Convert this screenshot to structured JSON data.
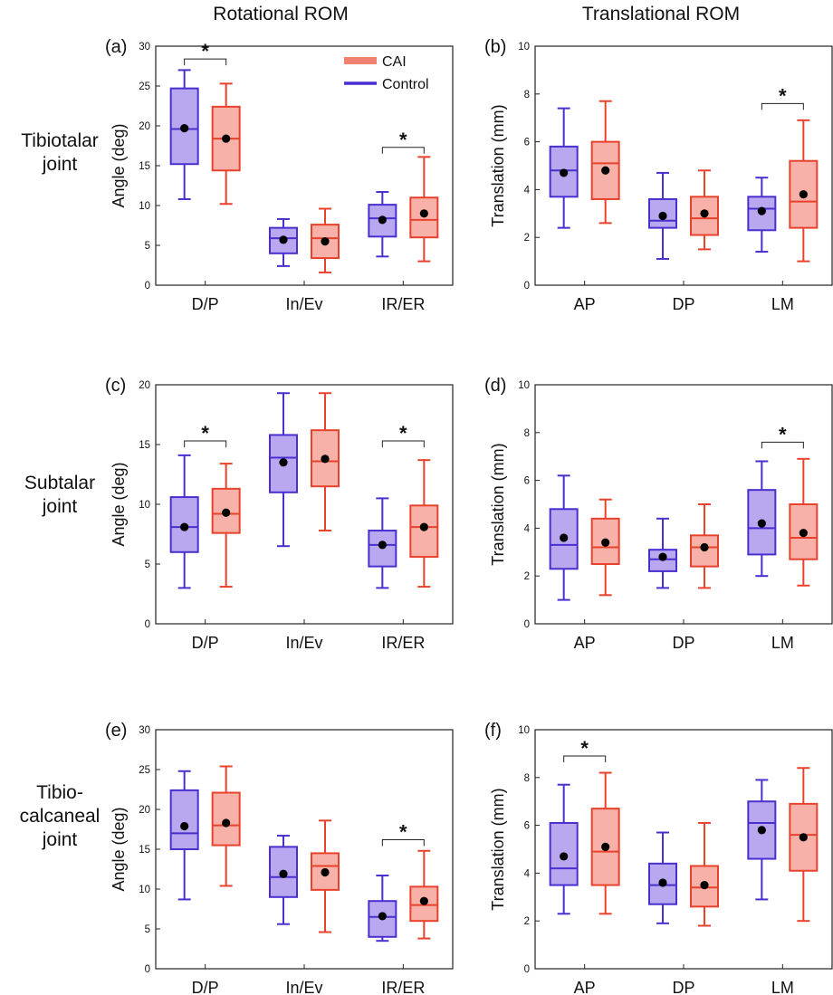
{
  "column_titles": [
    "Rotational ROM",
    "Translational ROM"
  ],
  "row_titles": [
    [
      "Tibiotalar",
      "joint"
    ],
    [
      "Subtalar",
      "joint"
    ],
    [
      "Tibio-",
      "calcaneal",
      "joint"
    ]
  ],
  "legend": [
    {
      "label": "CAI",
      "color": "#f08070"
    },
    {
      "label": "Control",
      "color": "#4a2fd0"
    }
  ],
  "colors": {
    "control_line": "#4a2fd0",
    "control_fill": "#b9a8ef",
    "cai_line": "#e8422c",
    "cai_fill": "#f7b1a8"
  },
  "chart_data": [
    {
      "type": "box",
      "label": "(a)",
      "ylabel": "Angle (deg)",
      "ylim": [
        0,
        30
      ],
      "yticks": [
        0,
        5,
        10,
        15,
        20,
        25,
        30
      ],
      "categories": [
        "D/P",
        "In/Ev",
        "IR/ER"
      ],
      "series": [
        {
          "name": "Control",
          "boxes": [
            {
              "min": 10.8,
              "q1": 15.2,
              "median": 19.6,
              "q3": 24.7,
              "max": 27.0,
              "mean": 19.7
            },
            {
              "min": 2.4,
              "q1": 4.0,
              "median": 5.9,
              "q3": 7.2,
              "max": 8.3,
              "mean": 5.7
            },
            {
              "min": 3.6,
              "q1": 6.1,
              "median": 8.4,
              "q3": 10.1,
              "max": 11.7,
              "mean": 8.2
            }
          ]
        },
        {
          "name": "CAI",
          "boxes": [
            {
              "min": 10.2,
              "q1": 14.4,
              "median": 18.4,
              "q3": 22.4,
              "max": 25.3,
              "mean": 18.4
            },
            {
              "min": 1.6,
              "q1": 3.4,
              "median": 5.9,
              "q3": 7.6,
              "max": 9.6,
              "mean": 5.5
            },
            {
              "min": 3.0,
              "q1": 6.0,
              "median": 8.2,
              "q3": 11.0,
              "max": 16.1,
              "mean": 9.0
            }
          ]
        }
      ],
      "significance": [
        {
          "category": 0,
          "y": 28.4,
          "label": "*"
        },
        {
          "category": 2,
          "y": 17.3,
          "label": "*"
        }
      ],
      "legend": true
    },
    {
      "type": "box",
      "label": "(b)",
      "ylabel": "Translation (mm)",
      "ylim": [
        0,
        10
      ],
      "yticks": [
        0,
        2,
        4,
        6,
        8,
        10
      ],
      "categories": [
        "AP",
        "DP",
        "LM"
      ],
      "series": [
        {
          "name": "Control",
          "boxes": [
            {
              "min": 2.4,
              "q1": 3.7,
              "median": 4.8,
              "q3": 5.8,
              "max": 7.4,
              "mean": 4.7
            },
            {
              "min": 1.1,
              "q1": 2.4,
              "median": 2.7,
              "q3": 3.6,
              "max": 4.7,
              "mean": 2.9
            },
            {
              "min": 1.4,
              "q1": 2.3,
              "median": 3.2,
              "q3": 3.7,
              "max": 4.5,
              "mean": 3.1
            }
          ]
        },
        {
          "name": "CAI",
          "boxes": [
            {
              "min": 2.6,
              "q1": 3.6,
              "median": 5.1,
              "q3": 6.0,
              "max": 7.7,
              "mean": 4.8
            },
            {
              "min": 1.5,
              "q1": 2.1,
              "median": 2.8,
              "q3": 3.7,
              "max": 4.8,
              "mean": 3.0
            },
            {
              "min": 1.0,
              "q1": 2.4,
              "median": 3.5,
              "q3": 5.2,
              "max": 6.9,
              "mean": 3.8
            }
          ]
        }
      ],
      "significance": [
        {
          "category": 2,
          "y": 7.6,
          "label": "*"
        }
      ],
      "legend": false
    },
    {
      "type": "box",
      "label": "(c)",
      "ylabel": "Angle (deg)",
      "ylim": [
        0,
        20
      ],
      "yticks": [
        0,
        5,
        10,
        15,
        20
      ],
      "categories": [
        "D/P",
        "In/Ev",
        "IR/ER"
      ],
      "series": [
        {
          "name": "Control",
          "boxes": [
            {
              "min": 3.0,
              "q1": 6.0,
              "median": 8.1,
              "q3": 10.6,
              "max": 14.1,
              "mean": 8.1
            },
            {
              "min": 6.5,
              "q1": 11.0,
              "median": 13.9,
              "q3": 15.8,
              "max": 19.3,
              "mean": 13.5
            },
            {
              "min": 3.0,
              "q1": 4.8,
              "median": 6.6,
              "q3": 7.8,
              "max": 10.5,
              "mean": 6.6
            }
          ]
        },
        {
          "name": "CAI",
          "boxes": [
            {
              "min": 3.1,
              "q1": 7.6,
              "median": 9.2,
              "q3": 11.3,
              "max": 13.4,
              "mean": 9.3
            },
            {
              "min": 7.8,
              "q1": 11.5,
              "median": 13.6,
              "q3": 16.2,
              "max": 19.3,
              "mean": 13.8
            },
            {
              "min": 3.1,
              "q1": 5.6,
              "median": 8.1,
              "q3": 9.9,
              "max": 13.7,
              "mean": 8.1
            }
          ]
        }
      ],
      "significance": [
        {
          "category": 0,
          "y": 15.3,
          "label": "*"
        },
        {
          "category": 2,
          "y": 15.3,
          "label": "*"
        }
      ],
      "legend": false
    },
    {
      "type": "box",
      "label": "(d)",
      "ylabel": "Translation (mm)",
      "ylim": [
        0,
        10
      ],
      "yticks": [
        0,
        2,
        4,
        6,
        8,
        10
      ],
      "categories": [
        "AP",
        "DP",
        "LM"
      ],
      "series": [
        {
          "name": "Control",
          "boxes": [
            {
              "min": 1.0,
              "q1": 2.3,
              "median": 3.3,
              "q3": 4.8,
              "max": 6.2,
              "mean": 3.6
            },
            {
              "min": 1.5,
              "q1": 2.2,
              "median": 2.7,
              "q3": 3.1,
              "max": 4.4,
              "mean": 2.8
            },
            {
              "min": 2.0,
              "q1": 2.9,
              "median": 4.0,
              "q3": 5.6,
              "max": 6.8,
              "mean": 4.2
            }
          ]
        },
        {
          "name": "CAI",
          "boxes": [
            {
              "min": 1.2,
              "q1": 2.5,
              "median": 3.2,
              "q3": 4.4,
              "max": 5.2,
              "mean": 3.4
            },
            {
              "min": 1.5,
              "q1": 2.4,
              "median": 3.2,
              "q3": 3.7,
              "max": 5.0,
              "mean": 3.2
            },
            {
              "min": 1.6,
              "q1": 2.7,
              "median": 3.6,
              "q3": 5.0,
              "max": 6.9,
              "mean": 3.8
            }
          ]
        }
      ],
      "significance": [
        {
          "category": 2,
          "y": 7.6,
          "label": "*"
        }
      ],
      "legend": false
    },
    {
      "type": "box",
      "label": "(e)",
      "ylabel": "Angle (deg)",
      "ylim": [
        0,
        30
      ],
      "yticks": [
        0,
        5,
        10,
        15,
        20,
        25,
        30
      ],
      "categories": [
        "D/P",
        "In/Ev",
        "IR/ER"
      ],
      "series": [
        {
          "name": "Control",
          "boxes": [
            {
              "min": 8.7,
              "q1": 15.0,
              "median": 17.0,
              "q3": 22.4,
              "max": 24.8,
              "mean": 17.9
            },
            {
              "min": 5.6,
              "q1": 9.0,
              "median": 11.5,
              "q3": 15.3,
              "max": 16.7,
              "mean": 11.9
            },
            {
              "min": 3.5,
              "q1": 4.0,
              "median": 6.5,
              "q3": 8.5,
              "max": 11.7,
              "mean": 6.6
            }
          ]
        },
        {
          "name": "CAI",
          "boxes": [
            {
              "min": 10.4,
              "q1": 15.5,
              "median": 18.0,
              "q3": 22.1,
              "max": 25.4,
              "mean": 18.3
            },
            {
              "min": 4.6,
              "q1": 9.9,
              "median": 12.9,
              "q3": 14.5,
              "max": 18.6,
              "mean": 12.1
            },
            {
              "min": 3.8,
              "q1": 6.0,
              "median": 8.0,
              "q3": 10.3,
              "max": 14.8,
              "mean": 8.5
            }
          ]
        }
      ],
      "significance": [
        {
          "category": 2,
          "y": 16.2,
          "label": "*"
        }
      ],
      "legend": false
    },
    {
      "type": "box",
      "label": "(f)",
      "ylabel": "Translation (mm)",
      "ylim": [
        0,
        10
      ],
      "yticks": [
        0,
        2,
        4,
        6,
        8,
        10
      ],
      "categories": [
        "AP",
        "DP",
        "LM"
      ],
      "series": [
        {
          "name": "Control",
          "boxes": [
            {
              "min": 2.3,
              "q1": 3.5,
              "median": 4.2,
              "q3": 6.1,
              "max": 7.7,
              "mean": 4.7
            },
            {
              "min": 1.9,
              "q1": 2.7,
              "median": 3.5,
              "q3": 4.4,
              "max": 5.7,
              "mean": 3.6
            },
            {
              "min": 2.9,
              "q1": 4.6,
              "median": 6.1,
              "q3": 7.0,
              "max": 7.9,
              "mean": 5.8
            }
          ]
        },
        {
          "name": "CAI",
          "boxes": [
            {
              "min": 2.3,
              "q1": 3.5,
              "median": 4.9,
              "q3": 6.7,
              "max": 8.2,
              "mean": 5.1
            },
            {
              "min": 1.8,
              "q1": 2.6,
              "median": 3.4,
              "q3": 4.3,
              "max": 6.1,
              "mean": 3.5
            },
            {
              "min": 2.0,
              "q1": 4.1,
              "median": 5.6,
              "q3": 6.9,
              "max": 8.4,
              "mean": 5.5
            }
          ]
        }
      ],
      "significance": [
        {
          "category": 0,
          "y": 8.9,
          "label": "*"
        }
      ],
      "legend": false
    }
  ]
}
